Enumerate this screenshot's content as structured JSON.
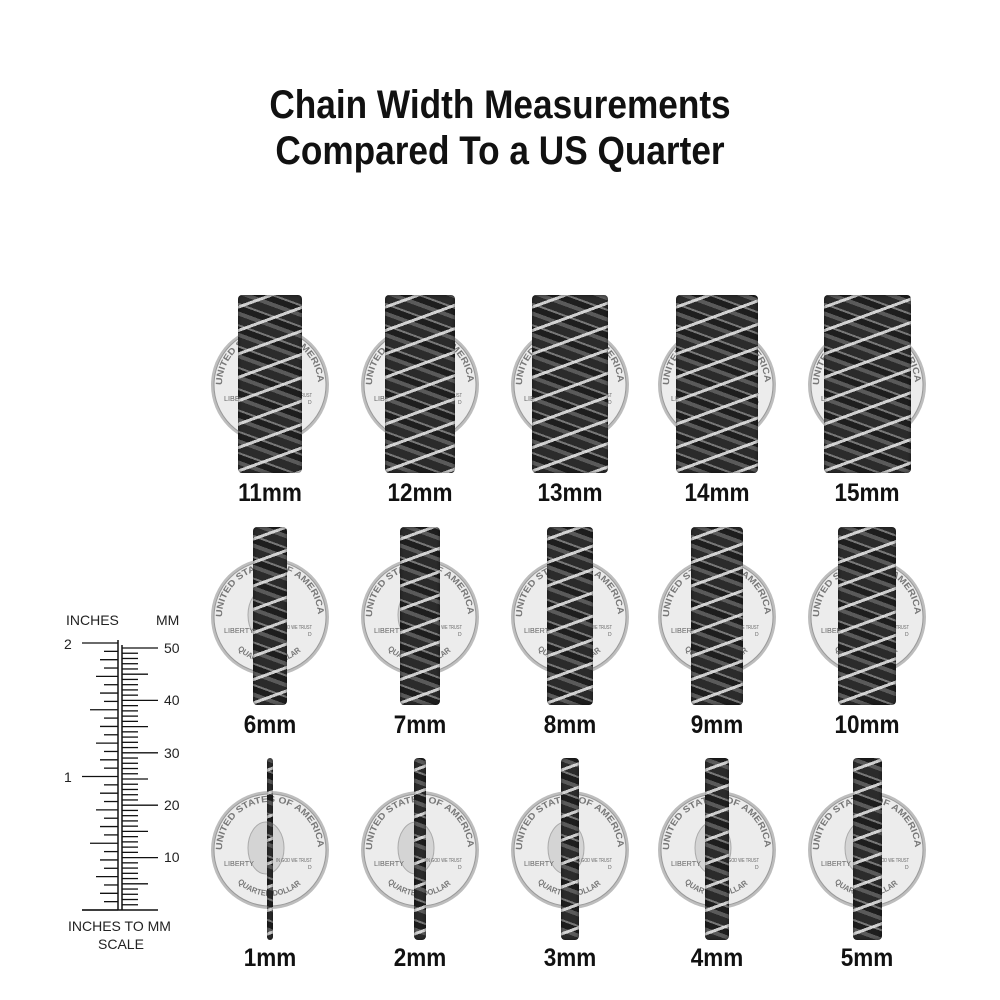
{
  "title": {
    "line1": "Chain Width Measurements",
    "line2": "Compared To a US Quarter"
  },
  "rows": [
    [
      "11mm",
      "12mm",
      "13mm",
      "14mm",
      "15mm"
    ],
    [
      "6mm",
      "7mm",
      "8mm",
      "9mm",
      "10mm"
    ],
    [
      "1mm",
      "2mm",
      "3mm",
      "4mm",
      "5mm"
    ]
  ],
  "coin_text": {
    "top": "UNITED STATES OF AMERICA",
    "left": "LIBERTY",
    "right": "IN GOD WE TRUST",
    "bottom": "QUARTER DOLLAR",
    "mint": "D"
  },
  "ruler": {
    "left_header": "INCHES",
    "right_header": "MM",
    "inch_labels": [
      "2",
      "1"
    ],
    "mm_labels": [
      "50",
      "40",
      "30",
      "20",
      "10"
    ],
    "caption_line1": "INCHES TO MM",
    "caption_line2": "SCALE"
  },
  "colors": {
    "chain": "#2b2b2b",
    "coin": "#e6e6e6",
    "text": "#111111"
  }
}
